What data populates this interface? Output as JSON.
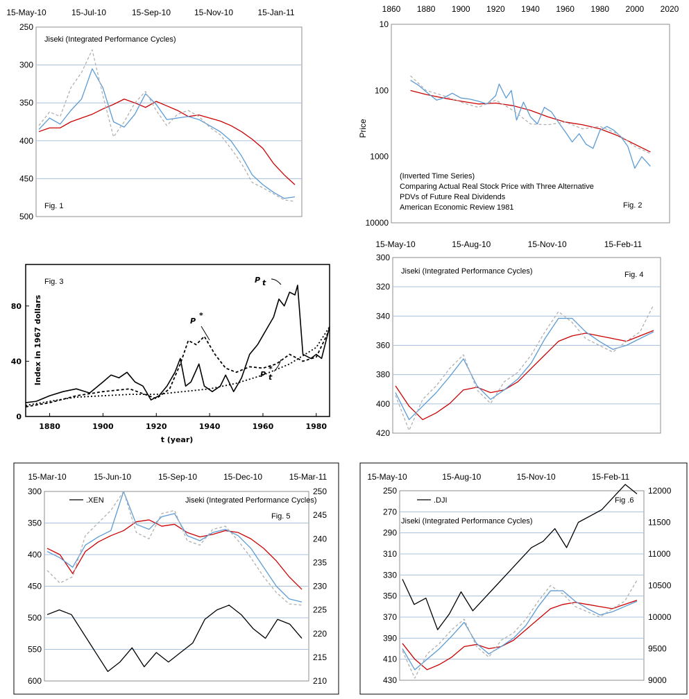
{
  "chart_data": [
    {
      "id": "fig1",
      "type": "line",
      "annotation": "Jiseki (Integrated Performance Cycles)",
      "fig_label": "Fig. 1",
      "x_ticks": [
        "15-May-10",
        "15-Jul-10",
        "15-Sep-10",
        "15-Nov-10",
        "15-Jan-11"
      ],
      "y_ticks": [
        "250",
        "300",
        "350",
        "400",
        "450",
        "500"
      ],
      "ylim": [
        500,
        250
      ],
      "y_inverted": true,
      "series": [
        {
          "color": "#cc0000",
          "style": "solid",
          "values": [
            388,
            383,
            383,
            375,
            370,
            365,
            358,
            352,
            345,
            350,
            356,
            348,
            354,
            360,
            368,
            366,
            370,
            374,
            380,
            388,
            398,
            410,
            430,
            445,
            458
          ]
        },
        {
          "color": "#5b9bd5",
          "style": "solid",
          "values": [
            385,
            370,
            378,
            360,
            345,
            305,
            330,
            375,
            382,
            365,
            338,
            352,
            372,
            370,
            368,
            372,
            380,
            388,
            400,
            420,
            445,
            458,
            468,
            476,
            474
          ]
        },
        {
          "color": "#b0b0b0",
          "style": "dashed",
          "values": [
            380,
            362,
            368,
            330,
            310,
            280,
            340,
            395,
            375,
            350,
            335,
            360,
            380,
            365,
            360,
            368,
            382,
            392,
            410,
            430,
            455,
            462,
            470,
            478,
            480
          ]
        }
      ]
    },
    {
      "id": "fig2",
      "type": "line",
      "y_scale": "log",
      "y_inverted": true,
      "ylabel": "Price",
      "x_ticks": [
        "1860",
        "1880",
        "1900",
        "1920",
        "1940",
        "1960",
        "1980",
        "2000",
        "2020"
      ],
      "xlim": [
        1860,
        2020
      ],
      "y_ticks": [
        "10",
        "100",
        "1000",
        "10000"
      ],
      "notes": [
        "(Inverted Time Series)",
        "Comparing Actual Real Stock Price with Three Alternative",
        "PDVs of Future Real Dividends",
        "American Economic Review 1981"
      ],
      "fig_label": "Fig. 2",
      "series": [
        {
          "color": "#cc0000",
          "style": "solid",
          "x": [
            1871,
            1880,
            1890,
            1900,
            1910,
            1920,
            1930,
            1940,
            1950,
            1960,
            1970,
            1980,
            1990,
            2000,
            2009
          ],
          "values": [
            100,
            115,
            130,
            145,
            160,
            155,
            170,
            200,
            250,
            300,
            330,
            380,
            480,
            650,
            850
          ]
        },
        {
          "color": "#5b9bd5",
          "style": "solid",
          "x": [
            1871,
            1876,
            1881,
            1886,
            1890,
            1895,
            1900,
            1905,
            1910,
            1915,
            1920,
            1922,
            1926,
            1929,
            1932,
            1936,
            1940,
            1944,
            1948,
            1952,
            1956,
            1960,
            1964,
            1968,
            1972,
            1976,
            1980,
            1984,
            1988,
            1992,
            1996,
            2000,
            2004,
            2009
          ],
          "values": [
            70,
            85,
            110,
            140,
            130,
            110,
            130,
            135,
            145,
            160,
            120,
            80,
            130,
            100,
            280,
            150,
            250,
            320,
            180,
            210,
            300,
            420,
            600,
            450,
            650,
            750,
            400,
            350,
            400,
            500,
            700,
            1500,
            1000,
            1400
          ]
        },
        {
          "color": "#b0b0b0",
          "style": "dashed",
          "x": [
            1871,
            1880,
            1890,
            1900,
            1910,
            1920,
            1930,
            1940,
            1950,
            1960,
            1970,
            1980,
            1990,
            2000,
            2009
          ],
          "values": [
            60,
            100,
            120,
            150,
            180,
            140,
            200,
            320,
            330,
            300,
            380,
            350,
            450,
            700,
            900
          ]
        }
      ]
    },
    {
      "id": "fig3",
      "type": "line",
      "fig_label": "Fig. 3",
      "xlabel": "t (year)",
      "ylabel": "Index in 1967 dollars",
      "x_ticks": [
        "1880",
        "1900",
        "1920",
        "1940",
        "1960",
        "1980"
      ],
      "xlim": [
        1871,
        1985
      ],
      "y_ticks": [
        "0",
        "40",
        "80"
      ],
      "ylim": [
        0,
        100
      ],
      "labels": {
        "pt_base": "P",
        "pt_sub": "t",
        "pstar_base": "P",
        "pstar_sup": "*",
        "pstar_bottom_sup": "*",
        "pstar_bottom_sub": "t"
      },
      "series": [
        {
          "name": "Pt",
          "color": "#000000",
          "style": "solid",
          "x": [
            1871,
            1875,
            1880,
            1885,
            1890,
            1895,
            1900,
            1903,
            1906,
            1909,
            1912,
            1915,
            1918,
            1921,
            1924,
            1927,
            1929,
            1931,
            1933,
            1936,
            1938,
            1941,
            1944,
            1946,
            1949,
            1952,
            1955,
            1958,
            1961,
            1964,
            1966,
            1968,
            1970,
            1972,
            1973,
            1975,
            1978,
            1980,
            1982,
            1985
          ],
          "values": [
            10,
            11,
            15,
            18,
            20,
            17,
            25,
            30,
            28,
            32,
            25,
            22,
            12,
            15,
            22,
            32,
            42,
            22,
            25,
            38,
            22,
            18,
            22,
            30,
            18,
            28,
            45,
            52,
            62,
            72,
            85,
            80,
            90,
            88,
            95,
            45,
            42,
            45,
            42,
            65
          ]
        },
        {
          "name": "P*",
          "color": "#000000",
          "style": "dashed",
          "x": [
            1871,
            1880,
            1890,
            1900,
            1910,
            1920,
            1925,
            1929,
            1932,
            1935,
            1938,
            1942,
            1946,
            1950,
            1955,
            1960,
            1965,
            1970,
            1975,
            1980,
            1985
          ],
          "values": [
            7,
            10,
            15,
            18,
            20,
            13,
            20,
            38,
            55,
            52,
            58,
            45,
            35,
            32,
            36,
            35,
            38,
            45,
            40,
            43,
            63
          ]
        },
        {
          "name": "P*t",
          "color": "#000000",
          "style": "dotted",
          "x": [
            1871,
            1880,
            1890,
            1900,
            1910,
            1920,
            1930,
            1940,
            1950,
            1960,
            1970,
            1980,
            1985
          ],
          "values": [
            8,
            11,
            14,
            15,
            16,
            16,
            18,
            20,
            24,
            30,
            38,
            50,
            65
          ]
        }
      ]
    },
    {
      "id": "fig4",
      "type": "line",
      "annotation": "Jiseki (Integrated Performance Cycles)",
      "fig_label": "Fig. 4",
      "x_ticks": [
        "15-May-10",
        "15-Aug-10",
        "15-Nov-10",
        "15-Feb-11"
      ],
      "y_ticks": [
        "300",
        "320",
        "340",
        "360",
        "380",
        "400",
        "420"
      ],
      "ylim": [
        430,
        300
      ],
      "y_inverted": true,
      "series": [
        {
          "color": "#cc0000",
          "style": "solid",
          "values": [
            395,
            410,
            420,
            415,
            408,
            398,
            396,
            400,
            398,
            392,
            382,
            372,
            362,
            358,
            356,
            358,
            360,
            362,
            358,
            354
          ]
        },
        {
          "color": "#5b9bd5",
          "style": "solid",
          "values": [
            400,
            420,
            410,
            400,
            388,
            375,
            395,
            405,
            398,
            390,
            378,
            360,
            345,
            345,
            355,
            362,
            368,
            365,
            360,
            355
          ]
        },
        {
          "color": "#b0b0b0",
          "style": "dashed",
          "values": [
            402,
            428,
            405,
            395,
            382,
            372,
            398,
            408,
            392,
            385,
            372,
            355,
            340,
            348,
            360,
            365,
            370,
            362,
            355,
            335
          ]
        }
      ]
    },
    {
      "id": "fig5",
      "type": "line",
      "annotation": "Jiseki (Integrated Performance Cycles)",
      "fig_label": "Fig. 5",
      "legend": ".XEN",
      "x_ticks": [
        "15-Mar-10",
        "15-Jun-10",
        "15-Sep-10",
        "15-Dec-10",
        "15-Mar-11"
      ],
      "y_ticks": [
        "300",
        "350",
        "400",
        "450",
        "500",
        "550",
        "600"
      ],
      "ylim": [
        600,
        300
      ],
      "y_inverted": true,
      "y2_ticks": [
        "250",
        "245",
        "240",
        "235",
        "230",
        "225",
        "220",
        "215",
        "210"
      ],
      "y2lim": [
        210,
        250
      ],
      "series": [
        {
          "color": "#cc0000",
          "style": "solid",
          "values": [
            390,
            400,
            430,
            395,
            380,
            370,
            362,
            348,
            345,
            355,
            352,
            365,
            372,
            368,
            362,
            365,
            375,
            390,
            410,
            435,
            455
          ]
        },
        {
          "color": "#5b9bd5",
          "style": "solid",
          "values": [
            395,
            405,
            420,
            385,
            372,
            362,
            300,
            352,
            360,
            340,
            335,
            370,
            378,
            365,
            360,
            370,
            390,
            420,
            450,
            470,
            475
          ]
        },
        {
          "color": "#b0b0b0",
          "style": "dashed",
          "values": [
            425,
            445,
            435,
            370,
            350,
            330,
            300,
            365,
            375,
            335,
            330,
            378,
            385,
            360,
            355,
            378,
            405,
            435,
            460,
            478,
            480
          ]
        },
        {
          "name": ".XEN",
          "axis": "right",
          "color": "#000000",
          "style": "solid",
          "values": [
            224,
            225,
            224,
            220,
            216,
            212,
            214,
            217,
            213,
            216,
            214,
            216,
            218,
            223,
            225,
            226,
            224,
            221,
            219,
            223,
            222,
            219
          ]
        }
      ]
    },
    {
      "id": "fig6",
      "type": "line",
      "annotation": "Jiseki (Integrated Performance Cycles)",
      "fig_label": "Fig .6",
      "legend": ".DJI",
      "x_ticks": [
        "15-May-10",
        "15-Aug-10",
        "15-Nov-10",
        "15-Feb-11"
      ],
      "y_ticks": [
        "250",
        "270",
        "290",
        "310",
        "330",
        "350",
        "370",
        "390",
        "410",
        "430"
      ],
      "ylim": [
        430,
        250
      ],
      "y_inverted": true,
      "y2_ticks": [
        "12000",
        "11500",
        "11000",
        "10500",
        "10000",
        "9500",
        "9000"
      ],
      "y2lim": [
        9000,
        12000
      ],
      "series": [
        {
          "color": "#cc0000",
          "style": "solid",
          "values": [
            395,
            410,
            420,
            415,
            408,
            398,
            396,
            400,
            398,
            392,
            382,
            372,
            362,
            358,
            356,
            358,
            360,
            362,
            358,
            354
          ]
        },
        {
          "color": "#5b9bd5",
          "style": "solid",
          "values": [
            400,
            420,
            410,
            400,
            388,
            375,
            395,
            405,
            398,
            390,
            378,
            360,
            345,
            345,
            355,
            362,
            368,
            365,
            360,
            355
          ]
        },
        {
          "color": "#b0b0b0",
          "style": "dashed",
          "values": [
            402,
            428,
            405,
            395,
            382,
            372,
            398,
            408,
            392,
            385,
            372,
            355,
            340,
            348,
            360,
            365,
            370,
            362,
            355,
            335
          ]
        },
        {
          "name": ".DJI",
          "axis": "right",
          "color": "#000000",
          "style": "solid",
          "values": [
            10600,
            10200,
            10300,
            9800,
            10050,
            10400,
            10100,
            10300,
            10500,
            10700,
            10900,
            11100,
            11200,
            11400,
            11100,
            11500,
            11600,
            11700,
            11900,
            12100,
            11950
          ]
        }
      ]
    }
  ]
}
